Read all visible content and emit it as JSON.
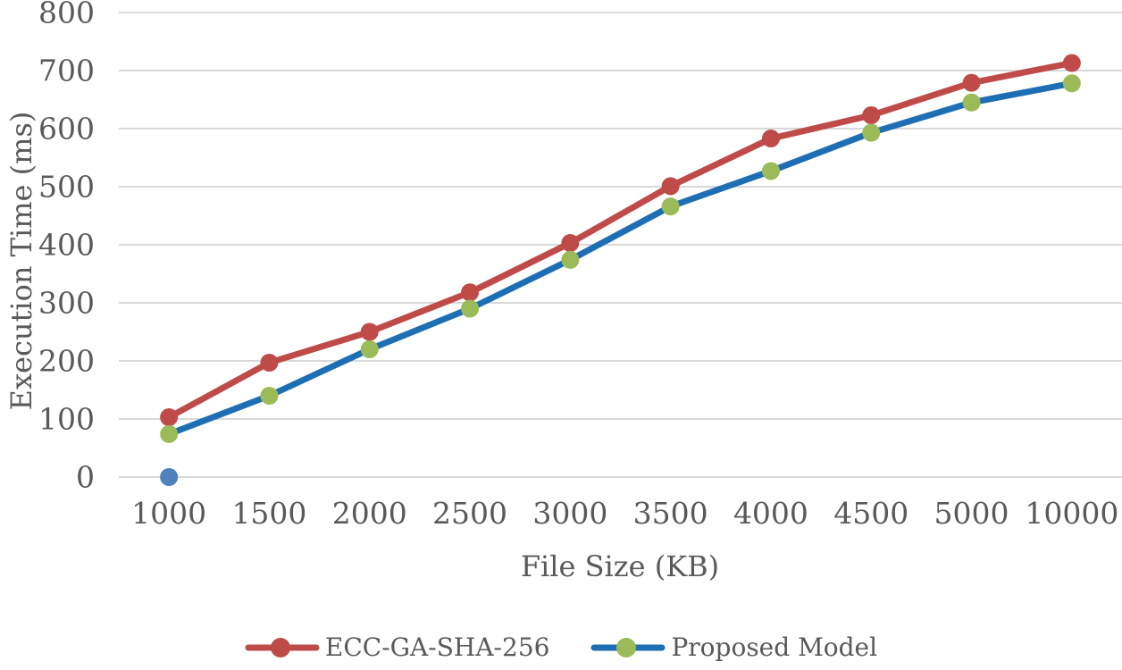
{
  "chart_data": {
    "type": "line",
    "title": "",
    "xlabel": "File Size (KB)",
    "ylabel": "Execution Time (ms)",
    "categories": [
      "1000",
      "1500",
      "2000",
      "2500",
      "3000",
      "3500",
      "4000",
      "4500",
      "5000",
      "10000"
    ],
    "y_axis": {
      "min": 0,
      "max": 800,
      "step": 100,
      "tick_labels": [
        "0",
        "100",
        "200",
        "300",
        "400",
        "500",
        "600",
        "700",
        "800"
      ]
    },
    "grid": "horizontal-only",
    "legend_position": "bottom-center",
    "series": [
      {
        "name": "ECC-GA-SHA-256",
        "line_color": "#BE4B48",
        "marker_color": "#BE4B48",
        "values": [
          103,
          197,
          250,
          318,
          403,
          501,
          583,
          623,
          679,
          713
        ]
      },
      {
        "name": "Proposed Model",
        "line_color": "#1E6EB4",
        "marker_color": "#9BBB59",
        "values": [
          74,
          140,
          220,
          290,
          374,
          466,
          527,
          593,
          645,
          678
        ]
      }
    ],
    "stray_point": {
      "category": "1000",
      "value": 0,
      "color": "#4F81BD"
    }
  },
  "colors": {
    "gridline": "#D9D9D9",
    "text": "#595959",
    "background": "#FFFFFF"
  }
}
